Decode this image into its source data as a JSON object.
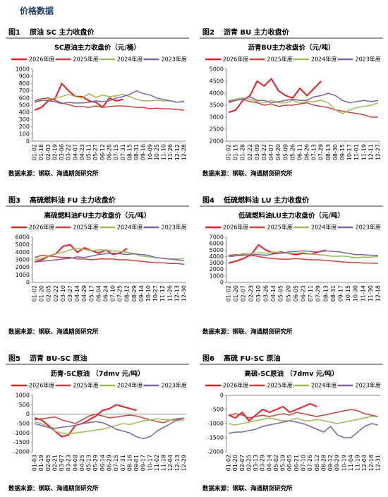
{
  "header": {
    "title": "价格数据"
  },
  "chart_data": [
    {
      "type": "line",
      "figure_label": "图1",
      "figure_title": "原油 SC 主力收盘价",
      "title": "SC原油主力收盘价（元/桶）",
      "source": "数据来源：钢联、海通期货研究所",
      "categories": [
        "01-02",
        "01-18",
        "02-03",
        "02-19",
        "03-06",
        "03-22",
        "04-07",
        "04-23",
        "05-11",
        "05-27",
        "06-12",
        "06-28",
        "07-15",
        "07-31",
        "08-15",
        "08-31",
        "09-16",
        "10-09",
        "10-25",
        "11-10",
        "11-26",
        "12-12",
        "12-28"
      ],
      "ylim": [
        0,
        1000
      ],
      "yticks": [
        0,
        100,
        200,
        300,
        400,
        500,
        600,
        700,
        800,
        900,
        1000
      ],
      "series": [
        {
          "name": "2026年度",
          "color": "#ee1c25",
          "values": [
            430,
            470,
            560,
            590,
            800,
            700,
            620,
            620,
            560,
            540,
            470,
            600,
            560,
            580,
            null,
            null,
            null,
            null,
            null,
            null,
            null,
            null,
            null
          ]
        },
        {
          "name": "2025年度",
          "color": "#c9463d",
          "values": [
            560,
            590,
            600,
            570,
            530,
            510,
            480,
            480,
            470,
            490,
            470,
            480,
            490,
            490,
            480,
            470,
            470,
            450,
            460,
            450,
            450,
            440,
            430
          ]
        },
        {
          "name": "2024年度",
          "color": "#9bbb59",
          "values": [
            540,
            560,
            580,
            600,
            620,
            650,
            620,
            600,
            660,
            610,
            640,
            620,
            630,
            650,
            620,
            580,
            560,
            560,
            570,
            560,
            560,
            540,
            560
          ]
        },
        {
          "name": "2023年度",
          "color": "#8064a2",
          "values": [
            540,
            570,
            560,
            550,
            520,
            540,
            530,
            530,
            540,
            560,
            550,
            560,
            600,
            620,
            650,
            700,
            660,
            640,
            600,
            580,
            560,
            540,
            550
          ]
        }
      ]
    },
    {
      "type": "line",
      "figure_label": "图2",
      "figure_title": "沥青 BU 主力收盘价",
      "title": "沥青BU主力收盘价（元/吨）",
      "source": "数据来源：钢联、海通期货研究所",
      "categories": [
        "01-02",
        "01-15",
        "01-28",
        "02-22",
        "03-09",
        "03-22",
        "04-07",
        "04-20",
        "05-09",
        "05-26",
        "06-11",
        "06-26",
        "07-13",
        "07-29",
        "08-13",
        "08-30",
        "09-15",
        "10-17",
        "11-01",
        "11-19",
        "12-11",
        "12-27"
      ],
      "ylim": [
        2000,
        5000
      ],
      "yticks": [
        2000,
        2500,
        3000,
        3500,
        4000,
        4500,
        5000
      ],
      "series": [
        {
          "name": "2026年度",
          "color": "#ee1c25",
          "values": [
            3200,
            3300,
            3700,
            3900,
            4500,
            4300,
            4600,
            4100,
            3900,
            3800,
            4200,
            3900,
            4200,
            4500,
            null,
            null,
            null,
            null,
            null,
            null,
            null,
            null
          ]
        },
        {
          "name": "2025年度",
          "color": "#c9463d",
          "values": [
            3650,
            3700,
            3750,
            3650,
            3600,
            3500,
            3550,
            3450,
            3500,
            3500,
            3550,
            3600,
            3500,
            3450,
            3400,
            3300,
            3250,
            3200,
            3150,
            3100,
            3000,
            3000
          ]
        },
        {
          "name": "2024年度",
          "color": "#9bbb59",
          "values": [
            3700,
            3750,
            3800,
            3750,
            3650,
            3600,
            3700,
            3600,
            3600,
            3700,
            3600,
            3650,
            3650,
            3700,
            3600,
            3300,
            3150,
            3300,
            3400,
            3450,
            3500,
            3600
          ]
        },
        {
          "name": "2023年度",
          "color": "#8064a2",
          "values": [
            3600,
            3700,
            3750,
            3850,
            3700,
            3700,
            3600,
            3650,
            3700,
            3750,
            3700,
            3700,
            3850,
            3900,
            4000,
            3900,
            3700,
            3600,
            3650,
            3700,
            3650,
            3700
          ]
        }
      ]
    },
    {
      "type": "line",
      "figure_label": "图3",
      "figure_title": "高硫燃料油 FU 主力收盘价",
      "title": "高硫燃料油FU主力收盘价（元/吨）",
      "source": "数据来源：钢联、海通期货研究所",
      "categories": [
        "01-02",
        "01-20",
        "02-05",
        "02-22",
        "03-10",
        "03-27",
        "04-14",
        "04-29",
        "05-17",
        "06-04",
        "06-24",
        "07-10",
        "07-25",
        "08-12",
        "08-29",
        "09-14",
        "10-10",
        "10-27",
        "11-12",
        "11-26",
        "12-13",
        "12-30"
      ],
      "ylim": [
        0,
        6000
      ],
      "yticks": [
        0,
        1000,
        2000,
        3000,
        4000,
        5000,
        6000
      ],
      "series": [
        {
          "name": "2026年度",
          "color": "#ee1c25",
          "values": [
            2700,
            3000,
            3500,
            3800,
            4800,
            5000,
            4000,
            4600,
            4200,
            3900,
            4300,
            3700,
            3900,
            4500,
            null,
            null,
            null,
            null,
            null,
            null,
            null,
            null
          ]
        },
        {
          "name": "2025年度",
          "color": "#c9463d",
          "values": [
            3300,
            3600,
            3500,
            3400,
            3300,
            3300,
            3100,
            3100,
            3000,
            3100,
            3100,
            3100,
            3000,
            3000,
            2900,
            2800,
            2700,
            2600,
            2600,
            2500,
            2500,
            2400
          ]
        },
        {
          "name": "2024年度",
          "color": "#9bbb59",
          "values": [
            3000,
            3200,
            3500,
            3800,
            4000,
            4300,
            4500,
            4400,
            4200,
            4300,
            4300,
            4200,
            4100,
            4000,
            3800,
            3500,
            3400,
            3300,
            3200,
            3100,
            3100,
            3200
          ]
        },
        {
          "name": "2023年度",
          "color": "#8064a2",
          "values": [
            2700,
            2800,
            2900,
            3000,
            3100,
            3200,
            3400,
            3300,
            3500,
            3700,
            3800,
            3900,
            3800,
            3700,
            3800,
            3700,
            3600,
            3300,
            3200,
            3100,
            3000,
            2900
          ]
        }
      ]
    },
    {
      "type": "line",
      "figure_label": "图4",
      "figure_title": "低硫燃料油 LU 主力收盘价",
      "title": "低硫燃料油LU主力收盘价（元/吨）",
      "source": "数据来源：钢联、海通期货研究所",
      "categories": [
        "01-02",
        "01-20",
        "02-07",
        "02-23",
        "03-10",
        "03-26",
        "04-14",
        "05-05",
        "05-20",
        "06-05",
        "06-23",
        "07-11",
        "07-29",
        "08-13",
        "08-31",
        "09-17",
        "10-15",
        "10-30",
        "11-14",
        "11-30",
        "12-18"
      ],
      "ylim": [
        0,
        7000
      ],
      "yticks": [
        0,
        1000,
        2000,
        3000,
        4000,
        5000,
        6000,
        7000
      ],
      "series": [
        {
          "name": "2026年度",
          "color": "#ee1c25",
          "values": [
            3000,
            3300,
            3700,
            4300,
            5800,
            5000,
            4500,
            4700,
            4500,
            4300,
            4500,
            4400,
            4700,
            5000,
            null,
            null,
            null,
            null,
            null,
            null,
            null
          ]
        },
        {
          "name": "2025年度",
          "color": "#c9463d",
          "values": [
            4200,
            4300,
            4300,
            4200,
            4000,
            3800,
            3700,
            3600,
            3600,
            3700,
            3600,
            3500,
            3500,
            3400,
            3300,
            3200,
            3100,
            3100,
            3000,
            3000,
            2950
          ]
        },
        {
          "name": "2024年度",
          "color": "#9bbb59",
          "values": [
            4000,
            4200,
            4500,
            4500,
            4600,
            4500,
            4700,
            4600,
            4500,
            4500,
            4600,
            4400,
            4300,
            4200,
            4000,
            4100,
            4000,
            3800,
            3900,
            3900,
            4000
          ]
        },
        {
          "name": "2023年度",
          "color": "#8064a2",
          "values": [
            4000,
            4100,
            4200,
            4300,
            4300,
            4200,
            4400,
            4500,
            4700,
            4800,
            4900,
            4800,
            4700,
            4900,
            4800,
            4700,
            4500,
            4300,
            4300,
            4200,
            4200
          ]
        }
      ]
    },
    {
      "type": "line",
      "figure_label": "图5",
      "figure_title": "沥青 BU-SC 原油",
      "title": "沥青-SC原油 （7dmv 元/吨）",
      "source": "数据来源：钢联、海通期货研究所",
      "categories": [
        "01-03",
        "01-19",
        "02-05",
        "02-21",
        "03-07",
        "03-23",
        "04-08",
        "04-25",
        "05-13",
        "05-29",
        "06-14",
        "06-29",
        "07-15",
        "07-31",
        "08-16",
        "09-01",
        "09-17",
        "10-17",
        "11-02",
        "11-18",
        "12-04",
        "12-13",
        "12-29"
      ],
      "ylim": [
        -2000,
        1000
      ],
      "yticks": [
        -2000,
        -1500,
        -1000,
        -500,
        0,
        500,
        1000
      ],
      "series": [
        {
          "name": "2026年度",
          "color": "#ee1c25",
          "values": [
            -200,
            -300,
            -600,
            -900,
            -1200,
            -1100,
            -600,
            -500,
            -300,
            -100,
            200,
            300,
            500,
            400,
            300,
            200,
            null,
            null,
            null,
            null,
            null,
            null,
            null
          ]
        },
        {
          "name": "2025年度",
          "color": "#c9463d",
          "values": [
            -300,
            -250,
            -200,
            -150,
            -300,
            -400,
            -500,
            -300,
            -100,
            0,
            -100,
            -200,
            -150,
            -100,
            -50,
            -100,
            -200,
            -300,
            -400,
            -450,
            -300,
            -250,
            -200
          ]
        },
        {
          "name": "2024年度",
          "color": "#9bbb59",
          "values": [
            -400,
            -500,
            -700,
            -900,
            -1000,
            -1050,
            -1000,
            -950,
            -900,
            -850,
            -800,
            -700,
            -600,
            -500,
            -550,
            -450,
            -350,
            -300,
            -250,
            -300,
            -300,
            -350,
            -300
          ]
        },
        {
          "name": "2023年度",
          "color": "#8064a2",
          "values": [
            -500,
            -600,
            -700,
            -750,
            -700,
            -650,
            -600,
            -500,
            -450,
            -400,
            -450,
            -600,
            -800,
            -900,
            -1000,
            -1200,
            -1300,
            -1200,
            -900,
            -700,
            -500,
            -300,
            -200
          ]
        }
      ]
    },
    {
      "type": "line",
      "figure_label": "图6",
      "figure_title": "高硫 FU-SC 原油",
      "title": "高硫-SC原油 （7dmv 元/吨）",
      "source": "数据来源：钢联、海通期货研究所",
      "categories": [
        "01-02",
        "01-20",
        "02-07",
        "02-25",
        "03-13",
        "03-29",
        "04-14",
        "05-02",
        "05-19",
        "06-05",
        "06-21",
        "07-10",
        "07-26",
        "08-12",
        "08-28",
        "09-12",
        "09-29",
        "10-19",
        "11-04",
        "11-19",
        "12-04",
        "12-16",
        "12-31"
      ],
      "ylim": [
        -2000,
        0
      ],
      "yticks": [
        -2000,
        -1500,
        -1000,
        -500,
        0
      ],
      "series": [
        {
          "name": "2026年度",
          "color": "#ee1c25",
          "values": [
            -700,
            -800,
            -600,
            -900,
            -700,
            -500,
            -600,
            -500,
            -400,
            -600,
            -500,
            -400,
            -300,
            -400,
            null,
            null,
            null,
            null,
            null,
            null,
            null,
            null,
            null
          ]
        },
        {
          "name": "2025年度",
          "color": "#c9463d",
          "values": [
            -700,
            -650,
            -700,
            -800,
            -750,
            -700,
            -750,
            -700,
            -650,
            -700,
            -600,
            -650,
            -700,
            -750,
            -700,
            -650,
            -600,
            -550,
            -500,
            -550,
            -650,
            -700,
            -750
          ]
        },
        {
          "name": "2024年度",
          "color": "#9bbb59",
          "values": [
            -1000,
            -1050,
            -1000,
            -950,
            -900,
            -850,
            -800,
            -850,
            -900,
            -900,
            -800,
            -900,
            -900,
            -850,
            -900,
            -950,
            -1000,
            -950,
            -900,
            -850,
            -800,
            -750,
            -750
          ]
        },
        {
          "name": "2023年度",
          "color": "#8064a2",
          "values": [
            -1350,
            -1300,
            -1300,
            -1250,
            -1200,
            -1100,
            -1050,
            -1000,
            -950,
            -900,
            -950,
            -1000,
            -1100,
            -1200,
            -1300,
            -1100,
            -1400,
            -1500,
            -1500,
            -1300,
            -1100,
            -1000,
            -1050
          ]
        }
      ]
    }
  ]
}
